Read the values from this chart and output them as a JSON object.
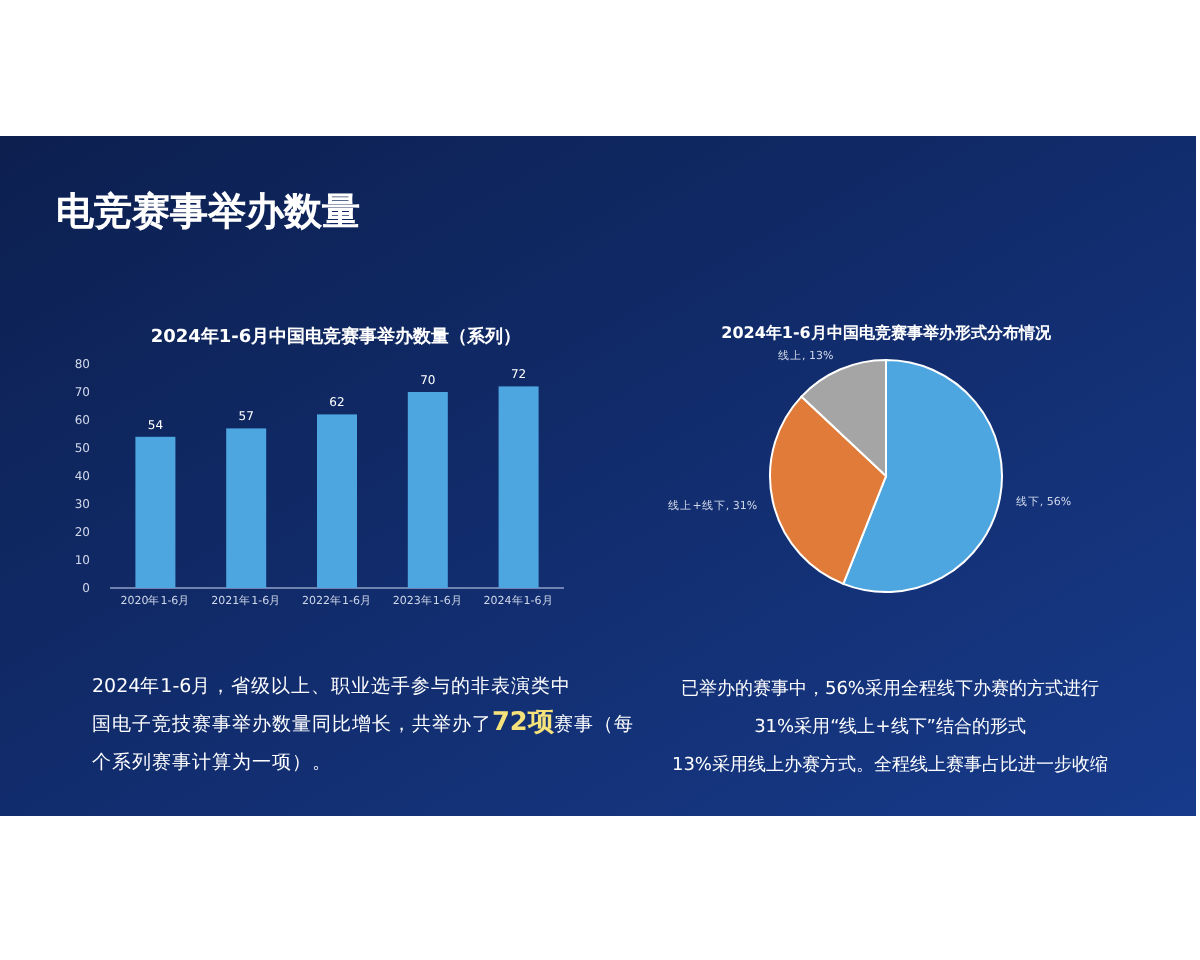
{
  "chart_data": [
    {
      "type": "other",
      "title": "电竞赛事举办数量"
    },
    {
      "type": "bar",
      "title": "2024年1-6月中国电竞赛事举办数量（系列）",
      "categories": [
        "2020年1-6月",
        "2021年1-6月",
        "2022年1-6月",
        "2023年1-6月",
        "2024年1-6月"
      ],
      "values": [
        54,
        57,
        62,
        70,
        72
      ],
      "color": "#4ea6e0",
      "data_labels": true,
      "ylim": [
        0,
        80
      ],
      "yticks": [
        0,
        10,
        20,
        30,
        40,
        50,
        60,
        70,
        80
      ],
      "annotations": [
        "2024年1-6月，省级以上、职业选手参与的非表演类中国电子竞技赛事举办数量同比增长，共举办了**72项**赛事（每个系列赛事计算为一项）。"
      ]
    },
    {
      "type": "pie",
      "title": "2024年1-6月中国电竞赛事举办形式分布情况",
      "categories": [
        "线下",
        "线上+线下",
        "线上"
      ],
      "values": [
        56,
        31,
        13
      ],
      "colors": [
        "#4ea6e0",
        "#e07b39",
        "#a5a5a5"
      ],
      "value_labels": [
        "56%",
        "31%",
        "13%"
      ],
      "annotations": [
        "已举办的赛事中，56%采用全程线下办赛的方式进行",
        "31%采用“线上+线下”结合的形式",
        "13%采用线上办赛方式。全程线上赛事占比进一步收缩"
      ]
    }
  ]
}
